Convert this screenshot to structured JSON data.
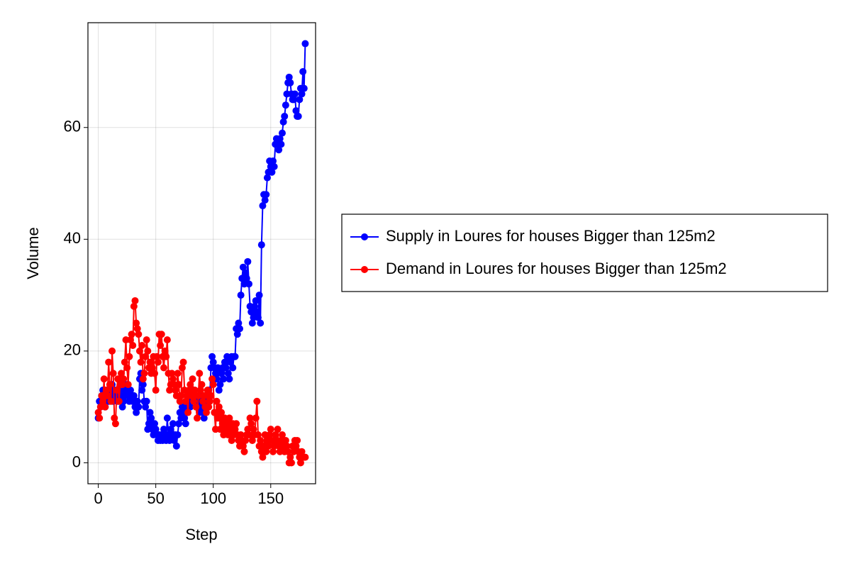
{
  "chart_data": {
    "type": "line",
    "x_label": "Step",
    "y_label": "Volume",
    "x": [
      0,
      1,
      2,
      3,
      4,
      5,
      6,
      7,
      8,
      9,
      10,
      11,
      12,
      13,
      14,
      15,
      16,
      17,
      18,
      19,
      20,
      21,
      22,
      23,
      24,
      25,
      26,
      27,
      28,
      29,
      30,
      31,
      32,
      33,
      34,
      35,
      36,
      37,
      38,
      39,
      40,
      41,
      42,
      43,
      44,
      45,
      46,
      47,
      48,
      49,
      50,
      51,
      52,
      53,
      54,
      55,
      56,
      57,
      58,
      59,
      60,
      61,
      62,
      63,
      64,
      65,
      66,
      67,
      68,
      69,
      70,
      71,
      72,
      73,
      74,
      75,
      76,
      77,
      78,
      79,
      80,
      81,
      82,
      83,
      84,
      85,
      86,
      87,
      88,
      89,
      90,
      91,
      92,
      93,
      94,
      95,
      96,
      97,
      98,
      99,
      100,
      101,
      102,
      103,
      104,
      105,
      106,
      107,
      108,
      109,
      110,
      111,
      112,
      113,
      114,
      115,
      116,
      117,
      118,
      119,
      120,
      121,
      122,
      123,
      124,
      125,
      126,
      127,
      128,
      129,
      130,
      131,
      132,
      133,
      134,
      135,
      136,
      137,
      138,
      139,
      140,
      141,
      142,
      143,
      144,
      145,
      146,
      147,
      148,
      149,
      150,
      151,
      152,
      153,
      154,
      155,
      156,
      157,
      158,
      159,
      160,
      161,
      162,
      163,
      164,
      165,
      166,
      167,
      168,
      169,
      170,
      171,
      172,
      173,
      174,
      175,
      176,
      177,
      178,
      179,
      180
    ],
    "series": [
      {
        "name": "Supply in Loures for houses Bigger than 125m2",
        "color": "#0000ff",
        "values": [
          8,
          11,
          10,
          12,
          13,
          11,
          10,
          13,
          12,
          11,
          13,
          12,
          14,
          11,
          12,
          13,
          12,
          11,
          13,
          14,
          12,
          10,
          11,
          13,
          12,
          14,
          12,
          11,
          13,
          12,
          11,
          12,
          10,
          9,
          11,
          10,
          15,
          16,
          13,
          14,
          11,
          10,
          11,
          6,
          7,
          9,
          8,
          6,
          5,
          7,
          6,
          5,
          4,
          5,
          4,
          5,
          4,
          6,
          5,
          4,
          8,
          5,
          4,
          6,
          5,
          7,
          4,
          5,
          3,
          5,
          7,
          9,
          8,
          10,
          9,
          8,
          7,
          10,
          11,
          12,
          10,
          11,
          12,
          13,
          11,
          12,
          10,
          11,
          9,
          10,
          12,
          9,
          8,
          11,
          12,
          10,
          13,
          12,
          17,
          19,
          18,
          17,
          16,
          15,
          17,
          13,
          14,
          16,
          17,
          15,
          18,
          17,
          19,
          16,
          15,
          18,
          19,
          17,
          19,
          19,
          24,
          23,
          25,
          24,
          30,
          33,
          35,
          32,
          34,
          33,
          36,
          32,
          28,
          27,
          25,
          26,
          28,
          29,
          27,
          26,
          30,
          25,
          39,
          46,
          48,
          47,
          48,
          51,
          52,
          54,
          53,
          52,
          54,
          53,
          57,
          58,
          57,
          56,
          58,
          57,
          59,
          61,
          62,
          64,
          66,
          68,
          69,
          68,
          66,
          65,
          65,
          66,
          63,
          62,
          62,
          65,
          67,
          66,
          70,
          67,
          75
        ]
      },
      {
        "name": "Demand in Loures for houses Bigger than 125m2",
        "color": "#ff0000",
        "values": [
          9,
          8,
          10,
          12,
          11,
          15,
          10,
          13,
          12,
          18,
          14,
          11,
          20,
          16,
          8,
          7,
          13,
          15,
          11,
          14,
          16,
          14,
          15,
          18,
          22,
          17,
          14,
          19,
          22,
          23,
          21,
          28,
          29,
          25,
          24,
          23,
          20,
          18,
          21,
          15,
          16,
          19,
          22,
          20,
          17,
          18,
          16,
          17,
          19,
          16,
          13,
          19,
          18,
          23,
          21,
          23,
          19,
          17,
          20,
          19,
          22,
          16,
          13,
          14,
          16,
          15,
          14,
          13,
          12,
          16,
          14,
          11,
          12,
          17,
          18,
          13,
          11,
          12,
          9,
          13,
          14,
          12,
          15,
          11,
          13,
          10,
          8,
          12,
          16,
          13,
          14,
          11,
          12,
          10,
          9,
          13,
          10,
          11,
          12,
          15,
          14,
          9,
          6,
          11,
          8,
          10,
          6,
          9,
          7,
          5,
          8,
          6,
          7,
          5,
          8,
          6,
          4,
          7,
          5,
          6,
          7,
          5,
          4,
          3,
          5,
          4,
          3,
          2,
          4,
          5,
          6,
          5,
          8,
          7,
          4,
          6,
          5,
          8,
          11,
          5,
          3,
          4,
          2,
          1,
          3,
          5,
          2,
          4,
          3,
          5,
          6,
          4,
          2,
          3,
          5,
          4,
          6,
          3,
          2,
          4,
          5,
          3,
          2,
          4,
          3,
          2,
          0,
          1,
          0,
          3,
          2,
          4,
          3,
          4,
          2,
          1,
          0,
          2,
          1,
          1,
          1
        ]
      }
    ],
    "xlim": [
      -9,
      189
    ],
    "ylim": [
      -3.75,
      78.75
    ],
    "xticks": [
      0,
      50,
      100,
      150
    ],
    "yticks": [
      0,
      20,
      40,
      60
    ],
    "grid": true,
    "legend": "right",
    "markers": true
  }
}
